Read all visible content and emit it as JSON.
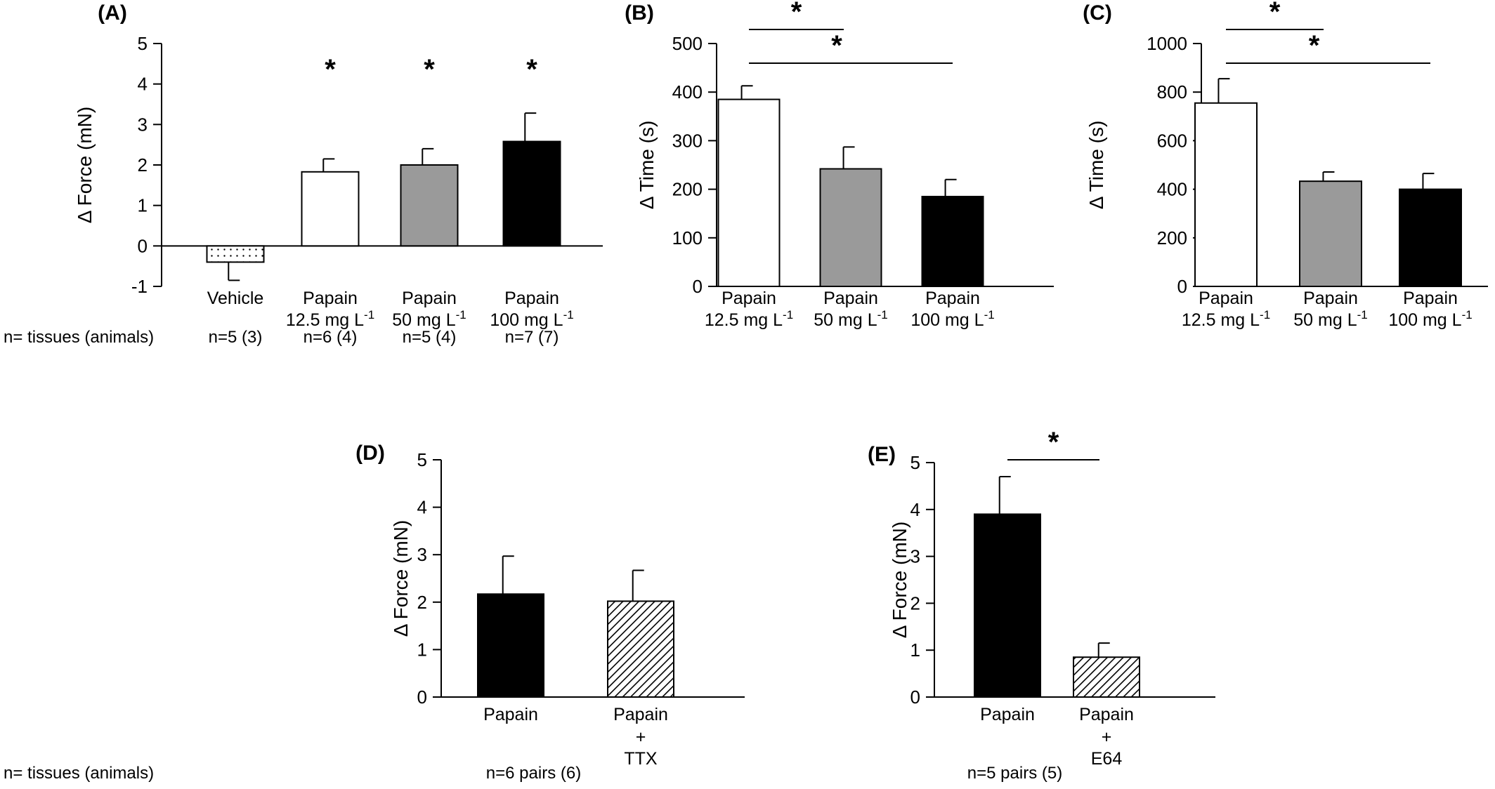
{
  "n_row_label": "n= tissues (animals)",
  "chart_data": [
    {
      "panel": "(A)",
      "type": "bar",
      "ylabel": "Δ Force (mN)",
      "ylim": [
        -1,
        5
      ],
      "yticks": [
        -1,
        0,
        1,
        2,
        3,
        4,
        5
      ],
      "categories": [
        [
          "Vehicle"
        ],
        [
          "Papain",
          "12.5 mg L-1"
        ],
        [
          "Papain",
          "50 mg L-1"
        ],
        [
          "Papain",
          "100 mg L-1"
        ]
      ],
      "values": [
        -0.4,
        1.83,
        2.0,
        2.58
      ],
      "errors": [
        0.45,
        0.32,
        0.4,
        0.7
      ],
      "fills": [
        "dots",
        "#ffffff",
        "#9a9a9a",
        "#000000"
      ],
      "significance": [
        "",
        "*",
        "*",
        "*"
      ],
      "n": [
        "n=5 (3)",
        "n=6 (4)",
        "n=5 (4)",
        "n=7 (7)"
      ]
    },
    {
      "panel": "(B)",
      "type": "bar",
      "ylabel": "Δ Time (s)",
      "ylim": [
        0,
        500
      ],
      "yticks": [
        0,
        100,
        200,
        300,
        400,
        500
      ],
      "categories": [
        [
          "Papain",
          "12.5 mg L-1"
        ],
        [
          "Papain",
          "50 mg L-1"
        ],
        [
          "Papain",
          "100 mg L-1"
        ]
      ],
      "values": [
        385,
        242,
        185
      ],
      "errors": [
        28,
        45,
        35
      ],
      "fills": [
        "#ffffff",
        "#9a9a9a",
        "#000000"
      ],
      "brackets": [
        {
          "from": 0,
          "to": 1,
          "label": "*"
        },
        {
          "from": 0,
          "to": 2,
          "label": "*"
        }
      ]
    },
    {
      "panel": "(C)",
      "type": "bar",
      "ylabel": "Δ Time (s)",
      "ylim": [
        0,
        1000
      ],
      "yticks": [
        0,
        200,
        400,
        600,
        800,
        1000
      ],
      "categories": [
        [
          "Papain",
          "12.5 mg L-1"
        ],
        [
          "Papain",
          "50 mg L-1"
        ],
        [
          "Papain",
          "100 mg L-1"
        ]
      ],
      "values": [
        755,
        433,
        400
      ],
      "errors": [
        100,
        38,
        65
      ],
      "fills": [
        "#ffffff",
        "#9a9a9a",
        "#000000"
      ],
      "brackets": [
        {
          "from": 0,
          "to": 1,
          "label": "*"
        },
        {
          "from": 0,
          "to": 2,
          "label": "*"
        }
      ]
    },
    {
      "panel": "(D)",
      "type": "bar",
      "ylabel": "Δ Force (mN)",
      "ylim": [
        0,
        5
      ],
      "yticks": [
        0,
        1,
        2,
        3,
        4,
        5
      ],
      "categories": [
        [
          "Papain"
        ],
        [
          "Papain",
          "+",
          "TTX"
        ]
      ],
      "values": [
        2.17,
        2.02
      ],
      "errors": [
        0.8,
        0.65
      ],
      "fills": [
        "#000000",
        "hatch"
      ],
      "n": "n=6 pairs (6)"
    },
    {
      "panel": "(E)",
      "type": "bar",
      "ylabel": "Δ Force (mN)",
      "ylim": [
        0,
        5
      ],
      "yticks": [
        0,
        1,
        2,
        3,
        4,
        5
      ],
      "categories": [
        [
          "Papain"
        ],
        [
          "Papain",
          "+",
          "E64"
        ]
      ],
      "values": [
        3.9,
        0.85
      ],
      "errors": [
        0.8,
        0.3
      ],
      "fills": [
        "#000000",
        "hatch"
      ],
      "brackets": [
        {
          "from": 0,
          "to": 1,
          "label": "*"
        }
      ],
      "n": "n=5 pairs (5)"
    }
  ]
}
